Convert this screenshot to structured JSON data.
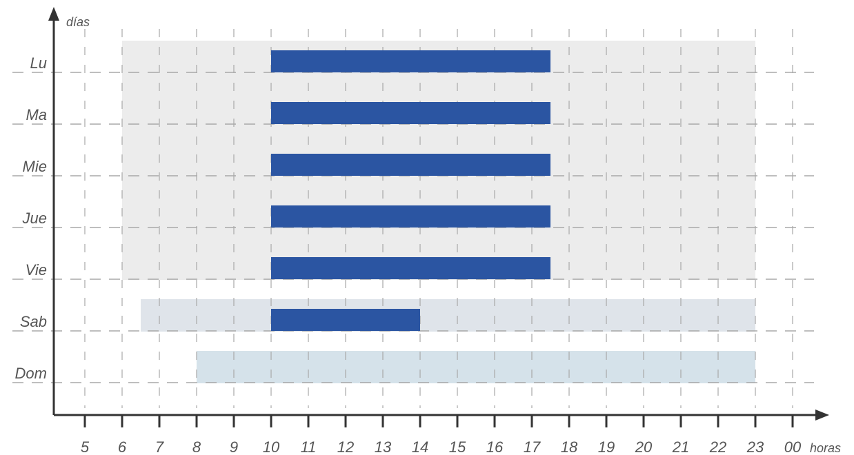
{
  "chart_data": {
    "type": "bar",
    "orientation": "horizontal",
    "title": "",
    "xlabel": "horas",
    "ylabel": "días",
    "x_ticks": [
      "5",
      "6",
      "7",
      "8",
      "9",
      "10",
      "11",
      "12",
      "13",
      "14",
      "15",
      "16",
      "17",
      "18",
      "19",
      "20",
      "21",
      "22",
      "23",
      "00"
    ],
    "categories": [
      "Lu",
      "Ma",
      "Mie",
      "Jue",
      "Vie",
      "Sab",
      "Dom"
    ],
    "bars": [
      {
        "day": "Lu",
        "start": 10,
        "end": 17.5
      },
      {
        "day": "Ma",
        "start": 10,
        "end": 17.5
      },
      {
        "day": "Mie",
        "start": 10,
        "end": 17.5
      },
      {
        "day": "Jue",
        "start": 10,
        "end": 17.5
      },
      {
        "day": "Vie",
        "start": 10,
        "end": 17.5
      },
      {
        "day": "Sab",
        "start": 10,
        "end": 14
      }
    ],
    "background_ranges": [
      {
        "days": [
          "Lu",
          "Ma",
          "Mie",
          "Jue",
          "Vie"
        ],
        "start": 6,
        "end": 23
      },
      {
        "days": [
          "Sab"
        ],
        "start": 6.5,
        "end": 23
      },
      {
        "days": [
          "Dom"
        ],
        "start": 8,
        "end": 23
      }
    ],
    "grid": true,
    "colors": {
      "bar": "#2b55a2",
      "weekday_band": "#ececec",
      "saturday_band": "#dfe4ea",
      "sunday_band": "#d5e2ea",
      "grid": "#a8a8a8",
      "axis": "#333333"
    }
  }
}
